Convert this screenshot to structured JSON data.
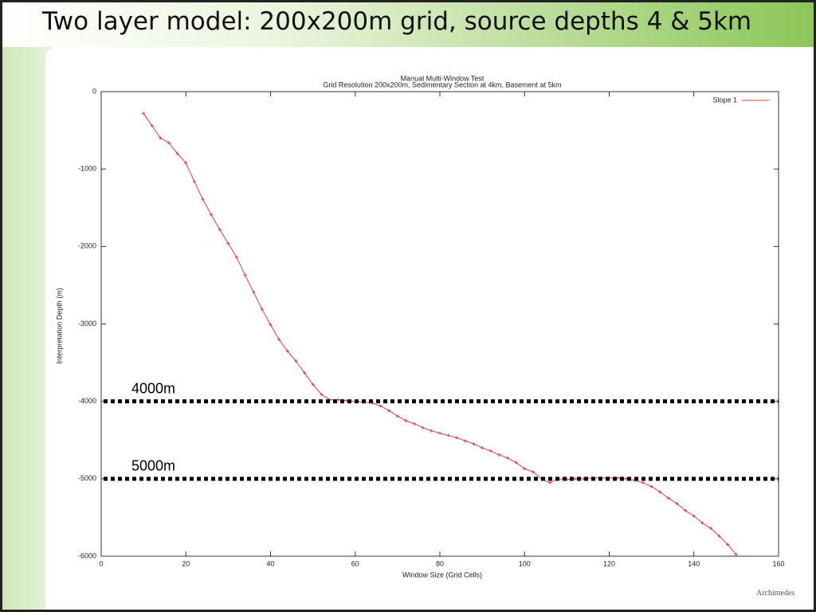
{
  "slide": {
    "title": "Two layer model: 200x200m grid, source depths 4 & 5km",
    "logo": "Archimedes"
  },
  "chart_data": {
    "type": "line",
    "title": "Manual Multi-Window Test",
    "subtitle": "Grid Resolution 200x200m, Sedimentary Section at 4km, Basement at 5km",
    "x_label": "Window Size (Grid Cells)",
    "y_label": "Interpretation Depth (m)",
    "x": [
      10,
      12,
      14,
      16,
      18,
      20,
      22,
      24,
      26,
      28,
      30,
      32,
      34,
      36,
      38,
      40,
      42,
      44,
      46,
      48,
      50,
      52,
      54,
      56,
      58,
      60,
      62,
      64,
      66,
      68,
      70,
      72,
      74,
      76,
      78,
      80,
      82,
      84,
      86,
      88,
      90,
      92,
      94,
      96,
      98,
      100,
      102,
      104,
      106,
      108,
      110,
      112,
      114,
      116,
      118,
      120,
      122,
      124,
      126,
      128,
      130,
      132,
      134,
      136,
      138,
      140,
      142,
      144,
      146,
      148,
      150
    ],
    "series": [
      {
        "name": "Slope 1",
        "color": "#e03c3c",
        "values": [
          -280,
          -440,
          -600,
          -660,
          -800,
          -920,
          -1160,
          -1390,
          -1590,
          -1780,
          -1960,
          -2140,
          -2370,
          -2590,
          -2810,
          -3010,
          -3200,
          -3350,
          -3480,
          -3630,
          -3780,
          -3910,
          -3980,
          -3980,
          -3990,
          -4000,
          -4010,
          -4020,
          -4060,
          -4120,
          -4190,
          -4250,
          -4290,
          -4340,
          -4380,
          -4410,
          -4440,
          -4470,
          -4510,
          -4550,
          -4600,
          -4640,
          -4690,
          -4730,
          -4790,
          -4870,
          -4910,
          -5000,
          -5050,
          -5000,
          -5010,
          -5000,
          -5000,
          -4990,
          -4990,
          -4990,
          -4990,
          -5000,
          -5020,
          -5050,
          -5100,
          -5170,
          -5250,
          -5320,
          -5410,
          -5480,
          -5570,
          -5640,
          -5740,
          -5850,
          -5980
        ]
      }
    ],
    "xlim": [
      0,
      160
    ],
    "xticks": [
      0,
      20,
      40,
      60,
      80,
      100,
      120,
      140,
      160
    ],
    "ylim": [
      -6000,
      0
    ],
    "yticks": [
      0,
      -1000,
      -2000,
      -3000,
      -4000,
      -5000,
      -6000
    ],
    "legend": "top-right",
    "reference_lines": [
      {
        "value": -4000,
        "label": "4000m"
      },
      {
        "value": -5000,
        "label": "5000m"
      }
    ]
  }
}
